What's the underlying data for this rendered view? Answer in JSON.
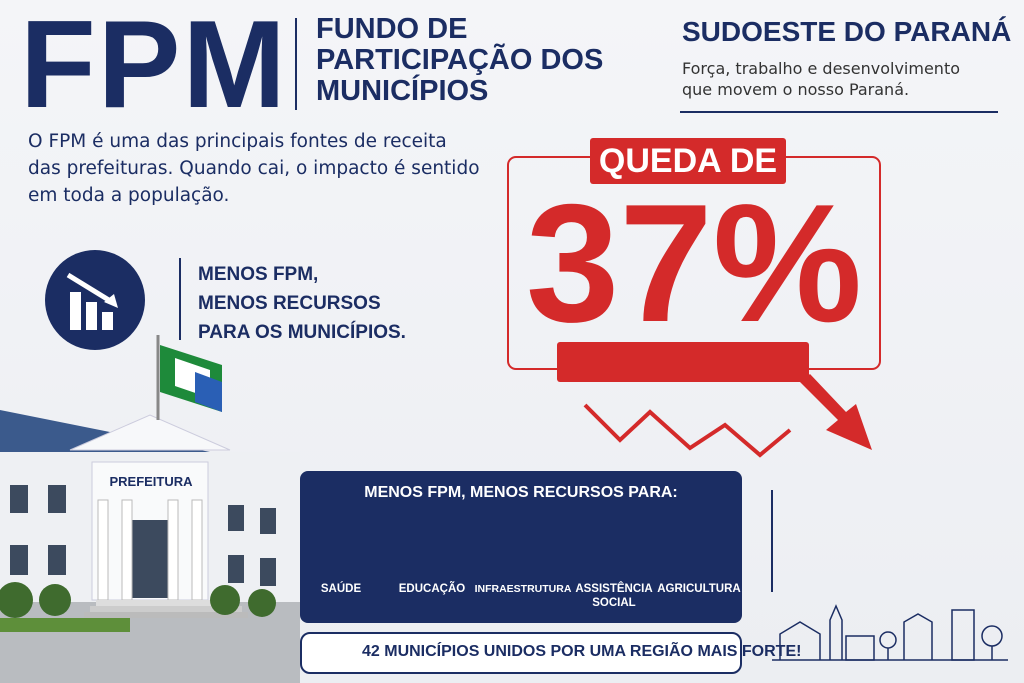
{
  "header": {
    "acronym": "FPM",
    "full_name_lines": [
      "FUNDO DE",
      "PARTICIPAÇÃO DOS",
      "MUNICÍPIOS"
    ]
  },
  "region": {
    "title": "SUDOESTE DO PARANÁ",
    "subtitle_lines": [
      "Força, trabalho e desenvolvimento",
      "que movem o nosso Paraná."
    ]
  },
  "intro": {
    "lines": [
      "O FPM é uma das principais fontes de receita",
      "das prefeituras. Quando cai, o impacto é sentido",
      "em toda a população."
    ]
  },
  "callout": {
    "lines": [
      "MENOS FPM,",
      "MENOS RECURSOS",
      "PARA OS MUNICÍPIOS."
    ]
  },
  "highlight": {
    "label": "QUEDA DE",
    "value": "37%"
  },
  "building": {
    "sign": "PREFEITURA"
  },
  "panel": {
    "title": "MENOS FPM, MENOS RECURSOS PARA:",
    "items": [
      {
        "lines": [
          "SAÚDE"
        ]
      },
      {
        "lines": [
          "EDUCAÇÃO"
        ]
      },
      {
        "lines": [
          "INFRAESTRUTURA"
        ]
      },
      {
        "lines": [
          "ASSISTÊNCIA",
          "SOCIAL"
        ]
      },
      {
        "lines": [
          "AGRICULTURA"
        ]
      }
    ]
  },
  "footer": {
    "banner": "42 MUNICÍPIOS UNIDOS POR UMA REGIÃO MAIS FORTE!"
  }
}
